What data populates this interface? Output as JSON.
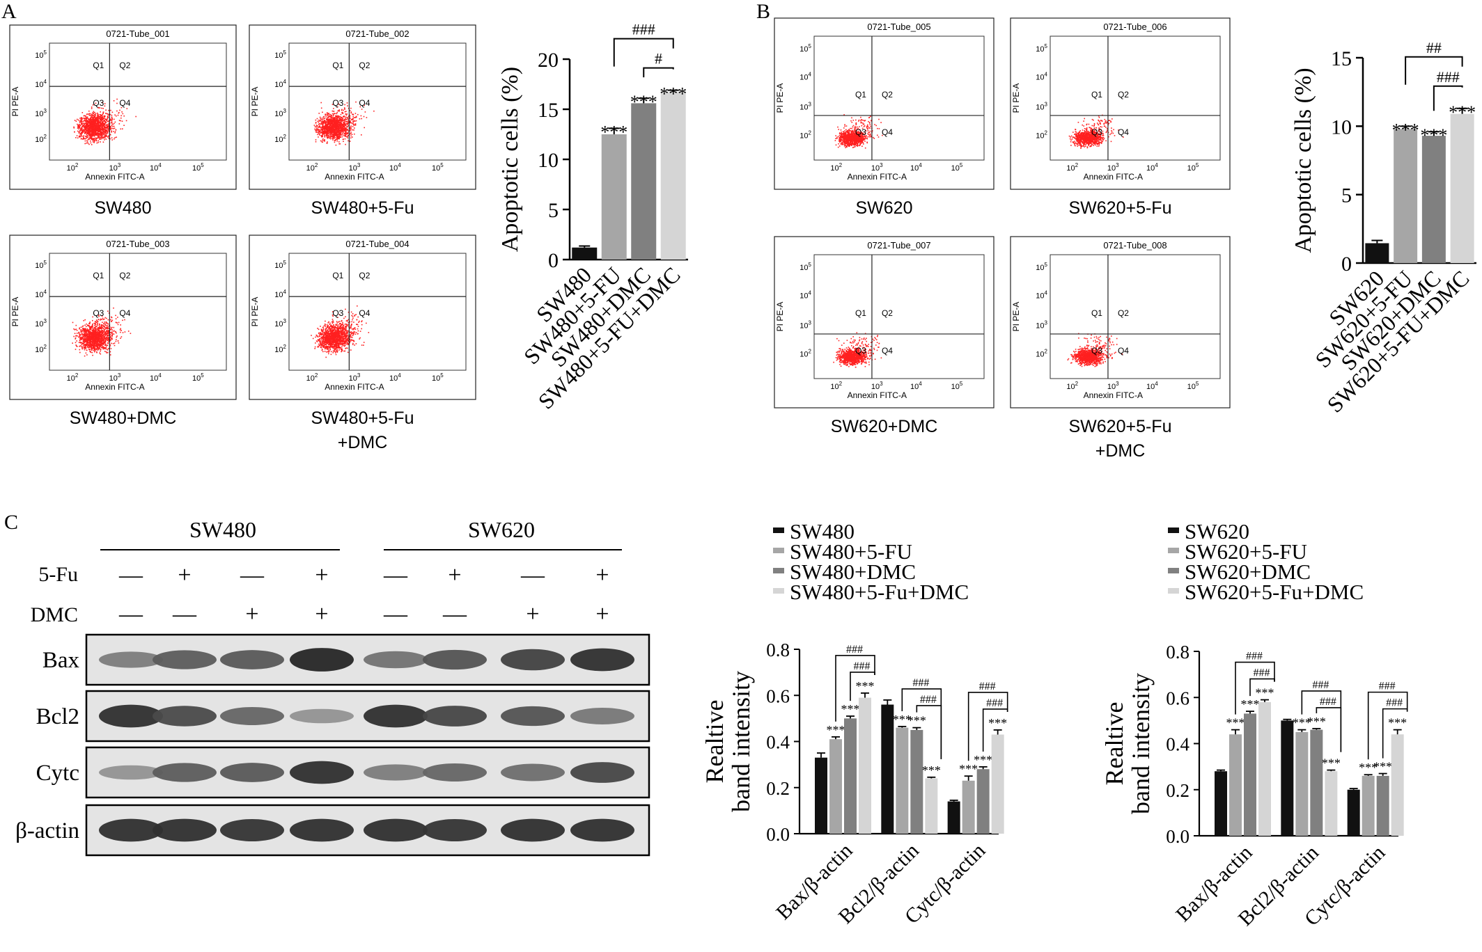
{
  "panels": {
    "a": "A",
    "b": "B",
    "c": "C"
  },
  "flow": {
    "tick_label": "10",
    "y_exps": [
      "2",
      "3",
      "4",
      "5"
    ],
    "x_exps": [
      "2",
      "3",
      "4",
      "5"
    ],
    "y_axis_label": "PI PE-A",
    "x_axis_label": "Annexin FITC-A",
    "quadrants": [
      "Q1",
      "Q2",
      "Q3",
      "Q4"
    ],
    "panel_a": [
      {
        "tube": "0721-Tube_001",
        "caption": [
          "SW480"
        ]
      },
      {
        "tube": "0721-Tube_002",
        "caption": [
          "SW480+5-Fu"
        ]
      },
      {
        "tube": "0721-Tube_003",
        "caption": [
          "SW480+DMC"
        ]
      },
      {
        "tube": "0721-Tube_004",
        "caption": [
          "SW480+5-Fu",
          "+DMC"
        ]
      }
    ],
    "panel_b": [
      {
        "tube": "0721-Tube_005",
        "caption": [
          "SW620"
        ]
      },
      {
        "tube": "0721-Tube_006",
        "caption": [
          "SW620+5-Fu"
        ]
      },
      {
        "tube": "0721-Tube_007",
        "caption": [
          "SW620+DMC"
        ]
      },
      {
        "tube": "0721-Tube_008",
        "caption": [
          "SW620+5-Fu",
          "+DMC"
        ]
      }
    ]
  },
  "western": {
    "cell_lines": [
      "SW480",
      "SW620"
    ],
    "row_labels": {
      "fu": "5-Fu",
      "dmc": "DMC"
    },
    "plus": "+",
    "minus": "—",
    "fu_signs": [
      "-",
      "+",
      "-",
      "+",
      "-",
      "+",
      "-",
      "+"
    ],
    "dmc_signs": [
      "-",
      "-",
      "+",
      "+",
      "-",
      "-",
      "+",
      "+"
    ],
    "blots": [
      {
        "name": "Bax",
        "intensity": [
          0.42,
          0.6,
          0.62,
          0.9,
          0.48,
          0.65,
          0.75,
          0.85
        ]
      },
      {
        "name": "Bcl2",
        "intensity": [
          0.85,
          0.7,
          0.55,
          0.3,
          0.85,
          0.72,
          0.65,
          0.45
        ]
      },
      {
        "name": "Cytc",
        "intensity": [
          0.3,
          0.6,
          0.62,
          0.85,
          0.42,
          0.55,
          0.5,
          0.72
        ]
      },
      {
        "name": "β-actin",
        "intensity": [
          0.85,
          0.85,
          0.82,
          0.85,
          0.85,
          0.82,
          0.85,
          0.85
        ]
      }
    ]
  },
  "chart_data": [
    {
      "id": "A-bar",
      "type": "bar",
      "categories": [
        "SW480",
        "SW480+5-FU",
        "SW480+DMC",
        "SW480+5-FU+DMC"
      ],
      "values": [
        1.2,
        12.5,
        15.6,
        16.7
      ],
      "errors": [
        0.15,
        0.6,
        0.5,
        0.2
      ],
      "colors": [
        "#111111",
        "#a6a6a6",
        "#808080",
        "#d5d5d5"
      ],
      "significance": [
        "",
        "***",
        "***",
        "***"
      ],
      "comparisons": [
        {
          "from": 1,
          "to": 3,
          "label": "###"
        },
        {
          "from": 2,
          "to": 3,
          "label": "#"
        }
      ],
      "ylabel": "Apoptotic cells (%)",
      "ylim": [
        0,
        20
      ],
      "yticks": [
        0,
        5,
        10,
        15,
        20
      ]
    },
    {
      "id": "B-bar",
      "type": "bar",
      "categories": [
        "SW620",
        "SW620+5-FU",
        "SW620+DMC",
        "SW620+5-FU+DMC"
      ],
      "values": [
        1.45,
        9.8,
        9.3,
        10.9
      ],
      "errors": [
        0.2,
        0.2,
        0.3,
        0.4
      ],
      "colors": [
        "#111111",
        "#a6a6a6",
        "#808080",
        "#d5d5d5"
      ],
      "significance": [
        "",
        "***",
        "***",
        "***"
      ],
      "comparisons": [
        {
          "from": 1,
          "to": 3,
          "label": "##"
        },
        {
          "from": 2,
          "to": 3,
          "label": "###"
        }
      ],
      "ylabel": "Apoptotic cells (%)",
      "ylim": [
        0,
        15
      ],
      "yticks": [
        0,
        5,
        10,
        15
      ]
    },
    {
      "id": "C-SW480-bar",
      "type": "bar",
      "categories": [
        "Bax/β-actin",
        "Bcl2/β-actin",
        "Cytc/β-actin"
      ],
      "series": [
        {
          "name": "SW480",
          "values": [
            0.33,
            0.56,
            0.14
          ],
          "errors": [
            0.02,
            0.02,
            0.005
          ]
        },
        {
          "name": "SW480+5-FU",
          "values": [
            0.41,
            0.46,
            0.23
          ],
          "errors": [
            0.01,
            0.005,
            0.02
          ]
        },
        {
          "name": "SW480+DMC",
          "values": [
            0.5,
            0.45,
            0.28
          ],
          "errors": [
            0.01,
            0.01,
            0.01
          ]
        },
        {
          "name": "SW480+5-Fu+DMC",
          "values": [
            0.59,
            0.24,
            0.43
          ],
          "errors": [
            0.02,
            0.005,
            0.02
          ]
        }
      ],
      "colors": [
        "#111111",
        "#a6a6a6",
        "#808080",
        "#d5d5d5"
      ],
      "significance": [
        [
          "",
          "***",
          "***",
          "***"
        ],
        [
          "",
          "***",
          "***",
          "***"
        ],
        [
          "",
          "***",
          "***",
          "***"
        ]
      ],
      "comparisons": [
        {
          "from": 1,
          "to": 3,
          "label": "###"
        },
        {
          "from": 2,
          "to": 3,
          "label": "###"
        }
      ],
      "ylabel": [
        "Realtive",
        "band intensity"
      ],
      "ylim": [
        0,
        0.8
      ],
      "yticks": [
        0,
        0.2,
        0.4,
        0.6,
        0.8
      ],
      "ytick_labels": [
        "0.0",
        "0.2",
        "0.4",
        "0.6",
        "0.8"
      ]
    },
    {
      "id": "C-SW620-bar",
      "type": "bar",
      "categories": [
        "Bax/β-actin",
        "Bcl2/β-actin",
        "Cytc/β-actin"
      ],
      "series": [
        {
          "name": "SW620",
          "values": [
            0.28,
            0.5,
            0.2
          ],
          "errors": [
            0.005,
            0.005,
            0.005
          ]
        },
        {
          "name": "SW620+5-FU",
          "values": [
            0.44,
            0.45,
            0.26
          ],
          "errors": [
            0.02,
            0.01,
            0.005
          ]
        },
        {
          "name": "SW620+DMC",
          "values": [
            0.53,
            0.46,
            0.26
          ],
          "errors": [
            0.01,
            0.005,
            0.01
          ]
        },
        {
          "name": "SW620+5-Fu+DMC",
          "values": [
            0.58,
            0.28,
            0.44
          ],
          "errors": [
            0.01,
            0.005,
            0.02
          ]
        }
      ],
      "colors": [
        "#111111",
        "#a6a6a6",
        "#808080",
        "#d5d5d5"
      ],
      "significance": [
        [
          "",
          "***",
          "***",
          "***"
        ],
        [
          "",
          "***",
          "***",
          "***"
        ],
        [
          "",
          "***",
          "***",
          "***"
        ]
      ],
      "comparisons": [
        {
          "from": 1,
          "to": 3,
          "label": "###"
        },
        {
          "from": 2,
          "to": 3,
          "label": "###"
        }
      ],
      "ylabel": [
        "Realtive",
        "band intensity"
      ],
      "ylim": [
        0,
        0.8
      ],
      "yticks": [
        0,
        0.2,
        0.4,
        0.6,
        0.8
      ],
      "ytick_labels": [
        "0.0",
        "0.2",
        "0.4",
        "0.6",
        "0.8"
      ]
    }
  ]
}
